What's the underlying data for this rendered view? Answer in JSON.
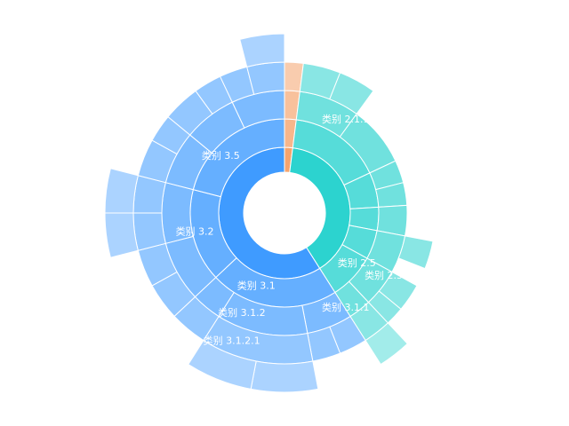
{
  "chart_data": {
    "type": "sunburst",
    "colors": {
      "group_1": "#F5A46E",
      "group_2": "#2CD3CF",
      "group_3": "#3F9BFF"
    },
    "data": [
      {
        "name": "",
        "value": 2,
        "color": "group_1",
        "children": [
          {
            "name": "",
            "value": 2,
            "children": [
              {
                "name": "",
                "value": 2,
                "children": [
                  {
                    "name": "",
                    "value": 2
                  }
                ]
              }
            ]
          }
        ]
      },
      {
        "name": "",
        "value": 39,
        "color": "group_2",
        "children": [
          {
            "name": "",
            "value": 16,
            "children": [
              {
                "name": "类别 2.1.1",
                "value": 8,
                "children": [
                  {
                    "name": "",
                    "value": 4
                  },
                  {
                    "name": "",
                    "value": 4
                  }
                ]
              },
              {
                "name": "",
                "value": 8
              }
            ]
          },
          {
            "name": "",
            "value": 6,
            "children": [
              {
                "name": "",
                "value": 3
              },
              {
                "name": "",
                "value": 3
              }
            ]
          },
          {
            "name": "",
            "value": 4,
            "children": [
              {
                "name": "",
                "value": 4
              }
            ]
          },
          {
            "name": "",
            "value": 5,
            "children": [
              {
                "name": "",
                "value": 5,
                "children": [
                  {
                    "name": "",
                    "value": 3
                  }
                ]
              }
            ]
          },
          {
            "name": "类别 2.5",
            "value": 8,
            "children": [
              {
                "name": "类别 2.5.1",
                "value": 5,
                "children": [
                  {
                    "name": "",
                    "value": 3
                  },
                  {
                    "name": "",
                    "value": 2
                  }
                ]
              },
              {
                "name": "",
                "value": 3,
                "children": [
                  {
                    "name": "",
                    "value": 3,
                    "children": [
                      {
                        "name": "",
                        "value": 3
                      }
                    ]
                  }
                ]
              }
            ]
          }
        ]
      },
      {
        "name": "",
        "value": 59,
        "color": "group_3",
        "children": [
          {
            "name": "类别 3.1",
            "value": 22,
            "children": [
              {
                "name": "类别 3.1.1",
                "value": 6,
                "children": [
                  {
                    "name": "",
                    "value": 3
                  },
                  {
                    "name": "",
                    "value": 3
                  }
                ]
              },
              {
                "name": "类别 3.1.2",
                "value": 12,
                "children": [
                  {
                    "name": "类别 3.1.2.1",
                    "value": 12,
                    "children": [
                      {
                        "name": "",
                        "value": 6
                      },
                      {
                        "name": "",
                        "value": 6
                      }
                    ]
                  }
                ]
              },
              {
                "name": "",
                "value": 4,
                "children": [
                  {
                    "name": "",
                    "value": 4
                  }
                ]
              }
            ]
          },
          {
            "name": "类别 3.2",
            "value": 16,
            "children": [
              {
                "name": "",
                "value": 8,
                "children": [
                  {
                    "name": "",
                    "value": 4
                  },
                  {
                    "name": "",
                    "value": 4
                  }
                ]
              },
              {
                "name": "",
                "value": 8,
                "children": [
                  {
                    "name": "",
                    "value": 4,
                    "children": [
                      {
                        "name": "",
                        "value": 4
                      }
                    ]
                  },
                  {
                    "name": "",
                    "value": 4,
                    "children": [
                      {
                        "name": "",
                        "value": 4
                      }
                    ]
                  }
                ]
              }
            ]
          },
          {
            "name": "类别 3.5",
            "value": 21,
            "children": [
              {
                "name": "",
                "value": 7,
                "children": [
                  {
                    "name": "",
                    "value": 4
                  },
                  {
                    "name": "",
                    "value": 3
                  }
                ]
              },
              {
                "name": "",
                "value": 7,
                "children": [
                  {
                    "name": "",
                    "value": 4
                  },
                  {
                    "name": "",
                    "value": 3
                  }
                ]
              },
              {
                "name": "",
                "value": 7,
                "children": [
                  {
                    "name": "",
                    "value": 3
                  },
                  {
                    "name": "",
                    "value": 4,
                    "children": [
                      {
                        "name": "",
                        "value": 4
                      }
                    ]
                  }
                ]
              }
            ]
          }
        ]
      }
    ]
  }
}
